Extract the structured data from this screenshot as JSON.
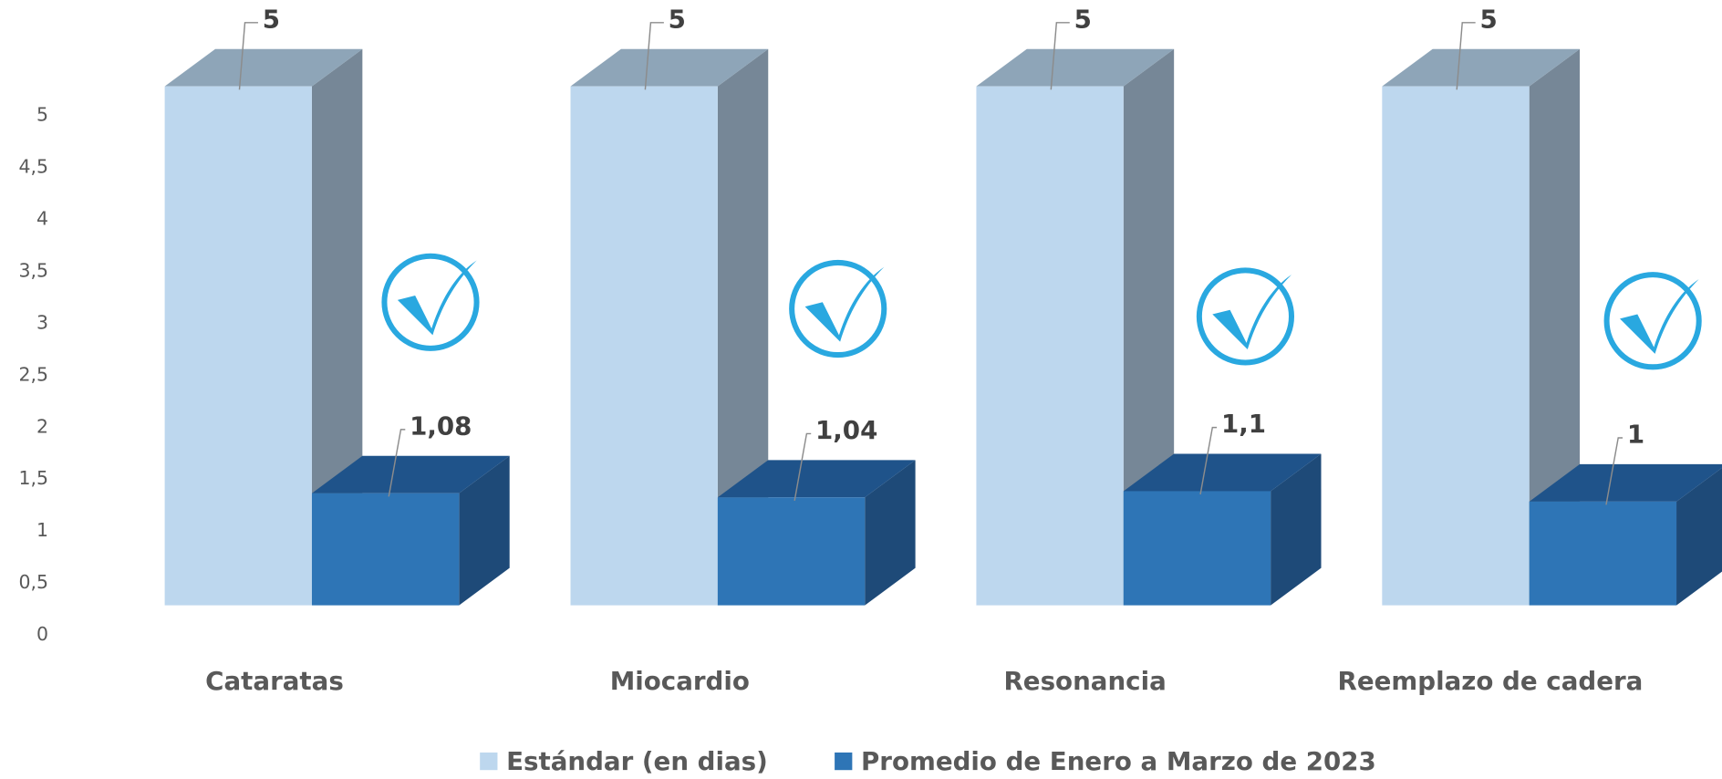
{
  "chart_data": {
    "type": "bar3d",
    "categories": [
      "Cataratas",
      "Miocardio",
      "Resonancia",
      "Reemplazo de cadera"
    ],
    "series": [
      {
        "name": "Estándar (en dias)",
        "color": "#bdd7ee",
        "values": [
          5,
          5,
          5,
          5
        ]
      },
      {
        "name": "Promedio de Enero a Marzo de 2023",
        "color": "#2e75b6",
        "values": [
          1.08,
          1.04,
          1.1,
          1
        ],
        "value_labels": [
          "1,08",
          "1,04",
          "1,1",
          "1"
        ]
      }
    ],
    "ylim": [
      0,
      5
    ],
    "yticks": [
      0,
      {
        "value": 0.5,
        "label": "0,5"
      },
      1,
      {
        "value": 1.5,
        "label": "1,5"
      },
      2,
      {
        "value": 2.5,
        "label": "2,5"
      },
      3,
      {
        "value": 3.5,
        "label": "3,5"
      },
      4,
      {
        "value": 4.5,
        "label": "4,5"
      },
      5
    ],
    "legend": "bottom"
  }
}
